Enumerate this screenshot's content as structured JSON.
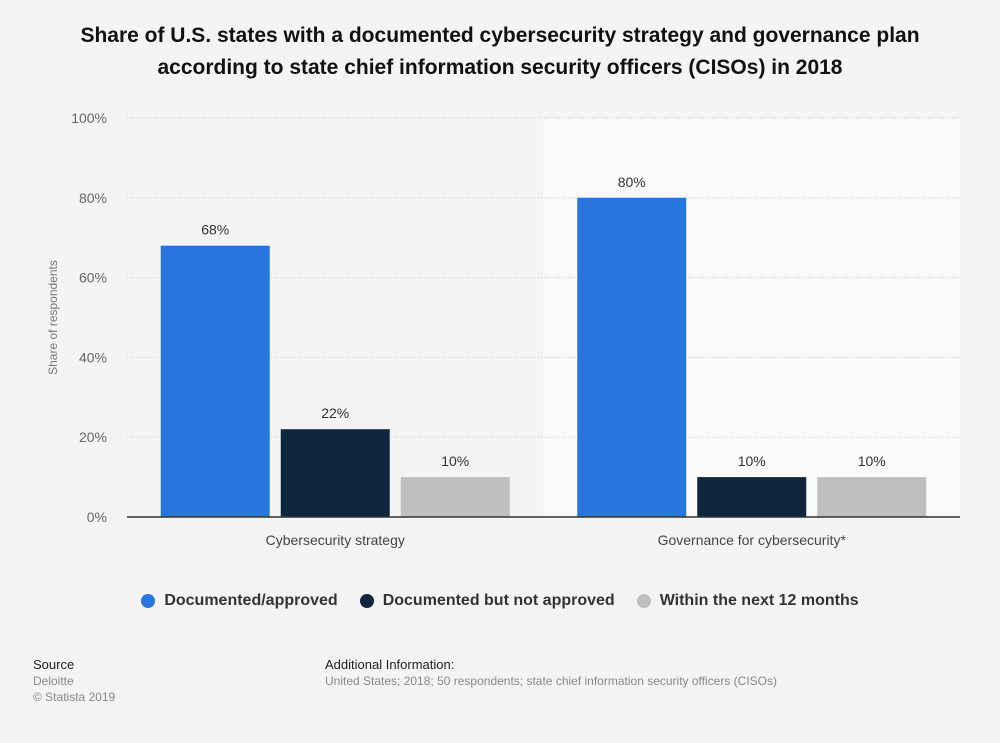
{
  "chart_data": {
    "type": "bar",
    "title_line1": "Share of U.S. states with a documented cybersecurity strategy and governance plan",
    "title_line2": "according to state chief information security officers (CISOs) in 2018",
    "ylabel": "Share of respondents",
    "ylim": [
      0,
      100
    ],
    "yticks": [
      "0%",
      "20%",
      "40%",
      "60%",
      "80%",
      "100%"
    ],
    "categories": [
      "Cybersecurity strategy",
      "Governance for cybersecurity*"
    ],
    "series": [
      {
        "name": "Documented/approved",
        "color": "#2876dd",
        "values": [
          68,
          80
        ],
        "labels": [
          "68%",
          "80%"
        ]
      },
      {
        "name": "Documented but not approved",
        "color": "#10263f",
        "values": [
          22,
          10
        ],
        "labels": [
          "22%",
          "10%"
        ]
      },
      {
        "name": "Within the next 12 months",
        "color": "#bfbfbf",
        "values": [
          10,
          10
        ],
        "labels": [
          "10%",
          "10%"
        ]
      }
    ],
    "grid": true,
    "legend": "bottom",
    "highlight_color": "#fafafa"
  },
  "footer": {
    "source_heading": "Source",
    "source_name": "Deloitte",
    "copyright": "© Statista 2019",
    "info_heading": "Additional Information:",
    "info_text": "United States; 2018; 50 respondents; state chief information security officers (CISOs)"
  }
}
